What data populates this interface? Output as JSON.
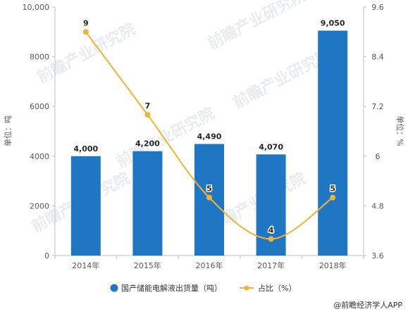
{
  "chart_data": {
    "type": "bar",
    "categories": [
      "2014年",
      "2015年",
      "2016年",
      "2017年",
      "2018年"
    ],
    "series": [
      {
        "name": "国产储能电解液出货量（吨）",
        "kind": "bar",
        "axis": "left",
        "color": "#1f77c4",
        "values": [
          4000,
          4200,
          4490,
          4070,
          9050
        ],
        "labels": [
          "4,000",
          "4,200",
          "4,490",
          "4,070",
          "9,050"
        ]
      },
      {
        "name": "占比（%）",
        "kind": "line",
        "axis": "right",
        "color": "#f2b233",
        "values": [
          9,
          7,
          5,
          4,
          5
        ],
        "labels": [
          "9",
          "7",
          "5",
          "4",
          "5"
        ]
      }
    ],
    "y_left": {
      "label": "单位：吨",
      "min": 0,
      "max": 10000,
      "ticks": [
        0,
        2000,
        4000,
        6000,
        8000,
        10000
      ],
      "tick_labels": [
        "0",
        "2000",
        "4000",
        "6000",
        "8000",
        "10,000"
      ]
    },
    "y_right": {
      "label": "单位：%",
      "min": 3.6,
      "max": 9.6,
      "ticks": [
        3.6,
        4.8,
        6,
        7.2,
        8.4,
        9.6
      ],
      "tick_labels": [
        "3.6",
        "4.8",
        "6",
        "7.2",
        "8.4",
        "9.6"
      ]
    },
    "grid": false,
    "legend_position": "bottom-center"
  },
  "watermark": {
    "text": "前瞻产业研究院"
  },
  "credit": {
    "text": "@前瞻经济学人APP"
  }
}
